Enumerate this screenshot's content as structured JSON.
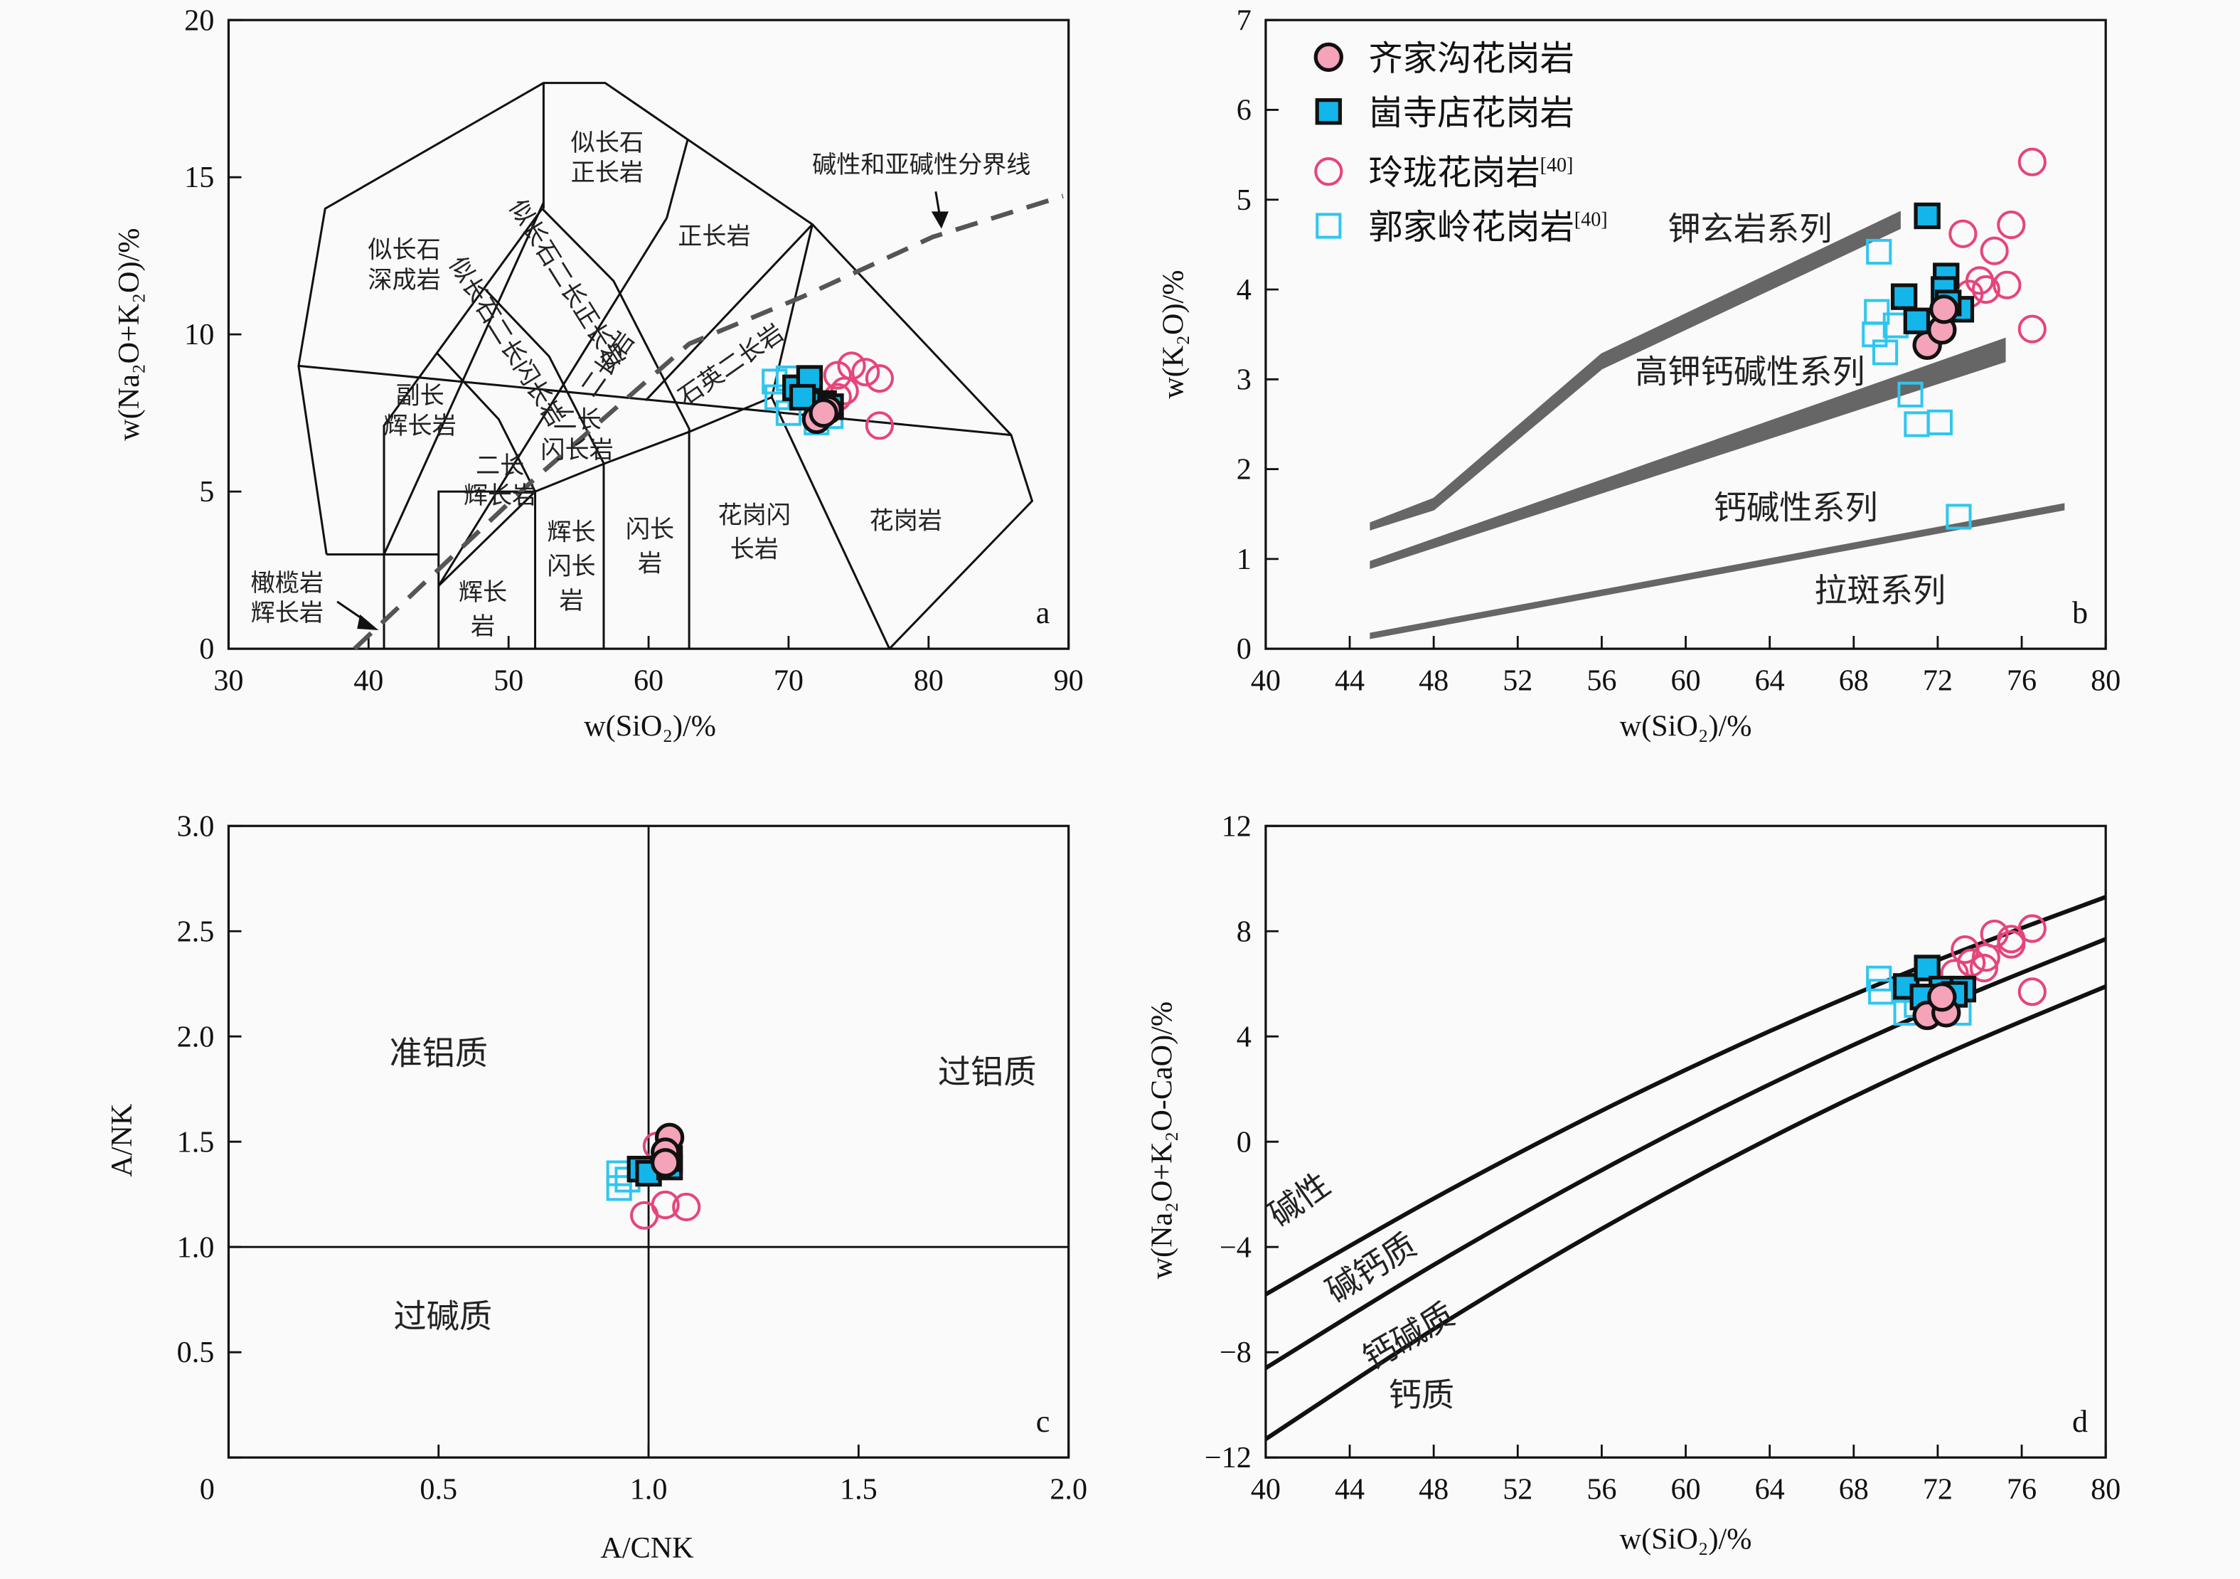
{
  "legend": [
    {
      "name": "齐家沟花岗岩",
      "ref": "",
      "marker": "filled-circle"
    },
    {
      "name": "崮寺店花岗岩",
      "ref": "",
      "marker": "filled-square"
    },
    {
      "name": "玲珑花岗岩",
      "ref": "[40]",
      "marker": "open-circle"
    },
    {
      "name": "郭家岭花岗岩",
      "ref": "[40]",
      "marker": "open-square"
    }
  ],
  "colors": {
    "filled_circle_fill": "#f4a3b8",
    "filled_square_fill": "#13b6ea",
    "open_circle_stroke": "#e6457a",
    "open_square_stroke": "#2fc6f0",
    "band": "#666666",
    "divider": "#555555"
  },
  "chart_data": [
    {
      "panel": "a",
      "type": "scatter",
      "xlabel": "w(SiO₂)/%",
      "ylabel": "w(Na₂O+K₂O)/%",
      "xlim": [
        30,
        90
      ],
      "ylim": [
        0,
        20
      ],
      "xticks": [
        "30",
        "40",
        "50",
        "60",
        "70",
        "80",
        "90"
      ],
      "yticks": [
        "0",
        "5",
        "10",
        "15",
        "20"
      ],
      "panel_label": "a",
      "field_boundaries": [
        [
          [
            41.1,
            0
          ],
          [
            41.1,
            7.1
          ],
          [
            52.4,
            14.0
          ]
        ],
        [
          [
            37.0,
            3.0
          ],
          [
            35.0,
            9.0
          ],
          [
            36.9,
            14.0
          ],
          [
            52.5,
            18.0
          ],
          [
            56.9,
            18.0
          ],
          [
            62.8,
            16.2
          ],
          [
            71.7,
            13.5
          ],
          [
            85.9,
            6.8
          ],
          [
            87.4,
            4.7
          ],
          [
            77.2,
            0
          ]
        ],
        [
          [
            37.0,
            3.0
          ],
          [
            45.0,
            3.0
          ]
        ],
        [
          [
            52.5,
            14.0
          ],
          [
            52.5,
            18.0
          ]
        ],
        [
          [
            41.1,
            3.0
          ],
          [
            52.5,
            14.2
          ]
        ],
        [
          [
            62.8,
            16.2
          ],
          [
            61.3,
            13.7
          ],
          [
            45.0,
            2.0
          ]
        ],
        [
          [
            52.4,
            14.0
          ],
          [
            57.5,
            11.7
          ],
          [
            62.9,
            7.0
          ],
          [
            62.9,
            0
          ]
        ],
        [
          [
            48.4,
            11.4
          ],
          [
            52.9,
            9.3
          ],
          [
            56.8,
            5.9
          ],
          [
            56.8,
            0
          ]
        ],
        [
          [
            44.9,
            9.4
          ],
          [
            49.3,
            7.3
          ],
          [
            51.9,
            5.0
          ],
          [
            51.9,
            0
          ]
        ],
        [
          [
            35.0,
            9.0
          ],
          [
            85.9,
            6.8
          ]
        ],
        [
          [
            45.0,
            0
          ],
          [
            45.0,
            5.0
          ],
          [
            51.9,
            5.0
          ],
          [
            45.0,
            2.0
          ]
        ],
        [
          [
            51.9,
            5.0
          ],
          [
            56.9,
            5.9
          ],
          [
            62.9,
            6.9
          ],
          [
            68.8,
            8.0
          ],
          [
            71.7,
            13.5
          ]
        ],
        [
          [
            68.8,
            8.0
          ],
          [
            77.2,
            0
          ]
        ],
        [
          [
            71.7,
            13.5
          ],
          [
            59.8,
            7.9
          ]
        ]
      ],
      "divider_line": {
        "label": "碱性和亚碱性分界线",
        "points": [
          [
            39.0,
            0
          ],
          [
            51.6,
            5.3
          ],
          [
            62.9,
            9.7
          ],
          [
            71.0,
            11.2
          ],
          [
            80.3,
            13.1
          ],
          [
            89.6,
            14.4
          ]
        ]
      },
      "field_labels": [
        "似长石\n深成岩",
        "似长石\n正长岩",
        "正长岩",
        "似长石二长正长岩",
        "似长石二长闪长岩",
        "二长岩",
        "石英二长岩",
        "副长\n辉长岩",
        "二长\n辉长岩",
        "二长\n闪长岩",
        "辉长\n岩",
        "辉长\n闪长\n岩",
        "闪长\n岩",
        "花岗闪\n长岩",
        "花岗岩",
        "橄榄岩\n辉长岩"
      ],
      "series": [
        {
          "marker": "open-square",
          "points": [
            [
              69,
              8.5
            ],
            [
              69.2,
              8.0
            ],
            [
              70,
              7.5
            ],
            [
              72,
              7.2
            ],
            [
              70,
              8.6
            ],
            [
              73,
              7.4
            ]
          ]
        },
        {
          "marker": "open-circle",
          "points": [
            [
              73.5,
              8.7
            ],
            [
              74.5,
              9.0
            ],
            [
              75.5,
              8.8
            ],
            [
              76.5,
              8.6
            ],
            [
              76.5,
              7.1
            ],
            [
              74,
              8.2
            ],
            [
              73.5,
              8.0
            ]
          ]
        },
        {
          "marker": "filled-square",
          "points": [
            [
              70.5,
              8.3
            ],
            [
              71.5,
              8.6
            ],
            [
              72.5,
              7.8
            ],
            [
              73,
              7.7
            ],
            [
              71,
              8.0
            ]
          ]
        },
        {
          "marker": "filled-circle",
          "points": [
            [
              72,
              7.3
            ],
            [
              72.8,
              7.6
            ],
            [
              72.5,
              7.5
            ]
          ]
        }
      ]
    },
    {
      "panel": "b",
      "type": "scatter",
      "xlabel": "w(SiO₂)/%",
      "ylabel": "w(K₂O)/%",
      "xlim": [
        40,
        80
      ],
      "ylim": [
        0,
        7
      ],
      "xticks": [
        "40",
        "44",
        "48",
        "52",
        "56",
        "60",
        "64",
        "68",
        "72",
        "76",
        "80"
      ],
      "yticks": [
        "0",
        "1",
        "2",
        "3",
        "4",
        "5",
        "6",
        "7"
      ],
      "panel_label": "b",
      "bands": [
        {
          "lower": [
            [
              45,
              1.33
            ],
            [
              48,
              1.55
            ],
            [
              56,
              3.12
            ],
            [
              70.2,
              4.68
            ]
          ],
          "upper": [
            [
              45,
              1.4
            ],
            [
              48,
              1.67
            ],
            [
              56,
              3.28
            ],
            [
              70.2,
              4.86
            ]
          ]
        },
        {
          "lower": [
            [
              45,
              0.9
            ],
            [
              75.2,
              3.2
            ]
          ],
          "upper": [
            [
              45,
              0.97
            ],
            [
              75.2,
              3.45
            ]
          ]
        },
        {
          "lower": [
            [
              45,
              0.12
            ],
            [
              78,
              1.55
            ]
          ],
          "upper": [
            [
              45,
              0.17
            ],
            [
              78,
              1.61
            ]
          ]
        }
      ],
      "series_labels": [
        "钾玄岩系列",
        "高钾钙碱性系列",
        "钙碱性系列",
        "拉斑系列"
      ],
      "series": [
        {
          "marker": "open-square",
          "points": [
            [
              69.2,
              4.42
            ],
            [
              69.1,
              3.75
            ],
            [
              69,
              3.5
            ],
            [
              69.5,
              3.3
            ],
            [
              70.7,
              2.83
            ],
            [
              71,
              2.5
            ],
            [
              72.1,
              2.52
            ],
            [
              73,
              1.47
            ],
            [
              70,
              3.6
            ]
          ]
        },
        {
          "marker": "open-circle",
          "points": [
            [
              76.5,
              5.42
            ],
            [
              73.2,
              4.62
            ],
            [
              75.5,
              4.72
            ],
            [
              74.7,
              4.43
            ],
            [
              74,
              4.1
            ],
            [
              74.3,
              4.0
            ],
            [
              75.3,
              4.05
            ],
            [
              76.5,
              3.56
            ],
            [
              73.5,
              3.95
            ]
          ]
        },
        {
          "marker": "filled-square",
          "points": [
            [
              71.5,
              4.82
            ],
            [
              70.4,
              3.92
            ],
            [
              71,
              3.65
            ],
            [
              72.4,
              4.15
            ],
            [
              72.3,
              4.0
            ],
            [
              73.1,
              3.78
            ],
            [
              72.5,
              3.85
            ]
          ]
        },
        {
          "marker": "filled-circle",
          "points": [
            [
              71.5,
              3.38
            ],
            [
              72.2,
              3.55
            ],
            [
              72.3,
              3.78
            ]
          ]
        }
      ]
    },
    {
      "panel": "c",
      "type": "scatter",
      "xlabel": "A/CNK",
      "ylabel": "A/NK",
      "xlim": [
        0,
        2.0
      ],
      "ylim": [
        0,
        3.0
      ],
      "xticks": [
        "0",
        "0.5",
        "1.0",
        "1.5",
        "2.0"
      ],
      "yticks": [
        "",
        "0.5",
        "1.0",
        "1.5",
        "2.0",
        "2.5",
        "3.0"
      ],
      "panel_label": "c",
      "dividers": {
        "x": 1.0,
        "y": 1.0
      },
      "region_labels": [
        "准铝质",
        "过铝质",
        "过碱质"
      ],
      "series": [
        {
          "marker": "open-square",
          "points": [
            [
              0.93,
              1.35
            ],
            [
              0.93,
              1.28
            ],
            [
              0.95,
              1.32
            ]
          ]
        },
        {
          "marker": "open-circle",
          "points": [
            [
              0.99,
              1.15
            ],
            [
              1.04,
              1.2
            ],
            [
              1.09,
              1.19
            ],
            [
              1.02,
              1.48
            ]
          ]
        },
        {
          "marker": "filled-square",
          "points": [
            [
              0.98,
              1.37
            ],
            [
              1.0,
              1.35
            ],
            [
              1.05,
              1.38
            ],
            [
              1.05,
              1.42
            ]
          ]
        },
        {
          "marker": "filled-circle",
          "points": [
            [
              1.05,
              1.52
            ],
            [
              1.04,
              1.45
            ],
            [
              1.04,
              1.4
            ]
          ]
        }
      ]
    },
    {
      "panel": "d",
      "type": "scatter",
      "xlabel": "w(SiO₂)/%",
      "ylabel": "w(Na₂O+K₂O-CaO)/%",
      "xlim": [
        40,
        80
      ],
      "ylim": [
        -12,
        12
      ],
      "xticks": [
        "40",
        "44",
        "48",
        "52",
        "56",
        "60",
        "64",
        "68",
        "72",
        "76",
        "80"
      ],
      "yticks": [
        "−12",
        "−8",
        "−4",
        "0",
        "4",
        "8",
        "12"
      ],
      "panel_label": "d",
      "boundary_curves": [
        [
          [
            40,
            -5.8
          ],
          [
            48,
            -2.16
          ],
          [
            56,
            1.18
          ],
          [
            64,
            4.2
          ],
          [
            72,
            6.9
          ],
          [
            80,
            9.3
          ]
        ],
        [
          [
            40,
            -8.6
          ],
          [
            48,
            -4.68
          ],
          [
            56,
            -1.08
          ],
          [
            64,
            2.18
          ],
          [
            72,
            5.1
          ],
          [
            80,
            7.7
          ]
        ],
        [
          [
            40,
            -11.3
          ],
          [
            48,
            -7.12
          ],
          [
            56,
            -3.31
          ],
          [
            64,
            0.13
          ],
          [
            72,
            3.2
          ],
          [
            80,
            5.9
          ]
        ]
      ],
      "region_labels": [
        "碱性",
        "碱钙质",
        "钙碱质",
        "钙质"
      ],
      "series": [
        {
          "marker": "open-square",
          "points": [
            [
              69.2,
              6.2
            ],
            [
              69.3,
              5.7
            ],
            [
              70.5,
              4.9
            ],
            [
              73,
              4.9
            ],
            [
              71,
              5.2
            ]
          ]
        },
        {
          "marker": "open-circle",
          "points": [
            [
              73.3,
              7.3
            ],
            [
              74.2,
              6.6
            ],
            [
              74.7,
              7.9
            ],
            [
              75.5,
              7.5
            ],
            [
              75.5,
              7.7
            ],
            [
              76.5,
              8.1
            ],
            [
              76.5,
              5.7
            ],
            [
              72.8,
              6.4
            ],
            [
              73.6,
              6.8
            ],
            [
              74.3,
              7.0
            ]
          ]
        },
        {
          "marker": "filled-square",
          "points": [
            [
              70.5,
              5.9
            ],
            [
              71.5,
              6.6
            ],
            [
              72.2,
              5.8
            ],
            [
              73.2,
              5.8
            ],
            [
              71.3,
              5.5
            ],
            [
              72.8,
              5.6
            ]
          ]
        },
        {
          "marker": "filled-circle",
          "points": [
            [
              71.5,
              4.8
            ],
            [
              72.4,
              4.9
            ],
            [
              72.2,
              5.5
            ]
          ]
        }
      ]
    }
  ]
}
